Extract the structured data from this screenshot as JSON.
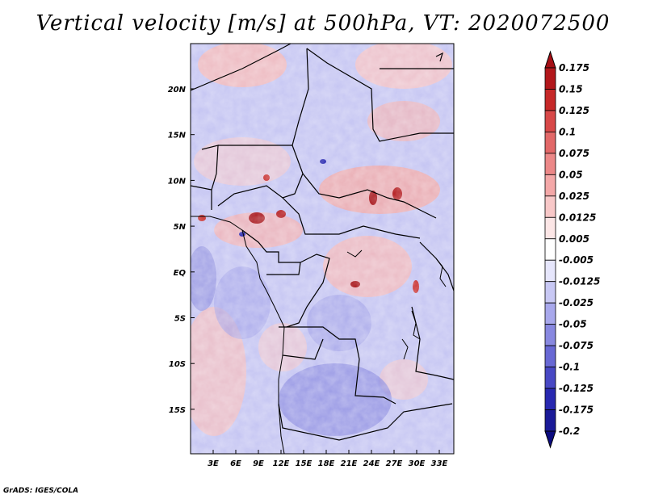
{
  "title": "Vertical velocity [m/s] at 500hPa, VT: 2020072500",
  "credit": "GrADS: IGES/COLA",
  "map": {
    "lat_labels": [
      "20N",
      "15N",
      "10N",
      "5N",
      "EQ",
      "5S",
      "10S",
      "15S"
    ],
    "lon_labels": [
      "3E",
      "6E",
      "9E",
      "12E",
      "15E",
      "18E",
      "21E",
      "24E",
      "27E",
      "30E",
      "33E"
    ]
  },
  "colorbar": {
    "labels": [
      "0.175",
      "0.15",
      "0.125",
      "0.1",
      "0.075",
      "0.05",
      "0.025",
      "0.0125",
      "0.005",
      "-0.005",
      "-0.0125",
      "-0.025",
      "-0.05",
      "-0.075",
      "-0.1",
      "-0.125",
      "-0.175",
      "-0.2"
    ],
    "colors": [
      "#a50f15",
      "#b2171b",
      "#c62828",
      "#d84848",
      "#e26868",
      "#ec8888",
      "#f4a8a8",
      "#f8c8c8",
      "#fce6e6",
      "#ffffff",
      "#e6e6fc",
      "#c8c8f4",
      "#a8a8ec",
      "#8888e0",
      "#6868d4",
      "#4848c4",
      "#2828b0",
      "#1a1a98",
      "#0c0c80"
    ]
  },
  "colors": {
    "positive": "#c62828",
    "negative": "#3030c0",
    "borders": "#000000"
  }
}
